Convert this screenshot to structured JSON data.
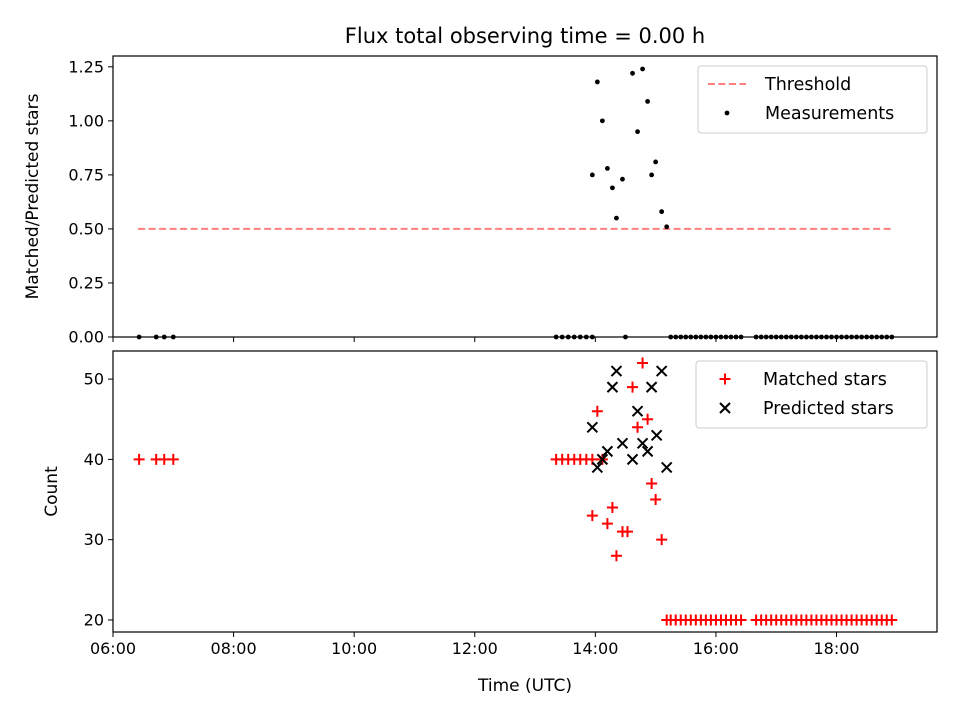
{
  "figure": {
    "title": "Flux total observing time = 0.00 h",
    "xlabel": "Time (UTC)"
  },
  "chart_data": [
    {
      "type": "scatter",
      "ylabel": "Matched/Predicted stars",
      "xlim": [
        "06:00",
        "19:40"
      ],
      "ylim": [
        0,
        1.3
      ],
      "xticks": [
        "06:00",
        "08:00",
        "10:00",
        "12:00",
        "14:00",
        "16:00",
        "18:00"
      ],
      "yticks": [
        "0.00",
        "0.25",
        "0.50",
        "0.75",
        "1.00",
        "1.25"
      ],
      "grid": false,
      "legend_position": "top-right",
      "series": [
        {
          "name": "Threshold",
          "kind": "line",
          "style": "dashed",
          "color": "#ff7f7f",
          "x": [
            "06:25",
            "18:57"
          ],
          "y": [
            0.5,
            0.5
          ]
        },
        {
          "name": "Measurements",
          "kind": "scatter",
          "marker": "dot",
          "color": "#000000",
          "x": [
            "06:26",
            "06:43",
            "06:51",
            "07:00",
            "13:21",
            "13:27",
            "13:33",
            "13:39",
            "13:45",
            "13:51",
            "13:57",
            "13:57",
            "14:02",
            "14:07",
            "14:12",
            "14:17",
            "14:21",
            "14:27",
            "14:30",
            "14:37",
            "14:42",
            "14:47",
            "14:52",
            "14:56",
            "15:00",
            "15:06",
            "15:11",
            "15:15",
            "15:20",
            "15:25",
            "15:30",
            "15:35",
            "15:40",
            "15:45",
            "15:50",
            "15:55",
            "16:00",
            "16:05",
            "16:10",
            "16:15",
            "16:20",
            "16:25",
            "16:40",
            "16:45",
            "16:50",
            "16:55",
            "17:00",
            "17:05",
            "17:10",
            "17:15",
            "17:20",
            "17:25",
            "17:30",
            "17:35",
            "17:40",
            "17:45",
            "17:50",
            "17:55",
            "18:00",
            "18:05",
            "18:10",
            "18:15",
            "18:20",
            "18:25",
            "18:30",
            "18:35",
            "18:40",
            "18:45",
            "18:50",
            "18:55"
          ],
          "y": [
            0,
            0,
            0,
            0,
            0,
            0,
            0,
            0,
            0,
            0,
            0,
            0.75,
            1.18,
            1.0,
            0.78,
            0.69,
            0.55,
            0.73,
            0,
            1.22,
            0.95,
            1.24,
            1.09,
            0.75,
            0.81,
            0.58,
            0.51,
            0,
            0,
            0,
            0,
            0,
            0,
            0,
            0,
            0,
            0,
            0,
            0,
            0,
            0,
            0,
            0,
            0,
            0,
            0,
            0,
            0,
            0,
            0,
            0,
            0,
            0,
            0,
            0,
            0,
            0,
            0,
            0,
            0,
            0,
            0,
            0,
            0,
            0,
            0,
            0,
            0,
            0,
            0
          ]
        }
      ]
    },
    {
      "type": "scatter",
      "ylabel": "Count",
      "xlim": [
        "06:00",
        "19:40"
      ],
      "ylim": [
        18.5,
        53.5
      ],
      "xticks": [
        "06:00",
        "08:00",
        "10:00",
        "12:00",
        "14:00",
        "16:00",
        "18:00"
      ],
      "yticks": [
        "20",
        "30",
        "40",
        "50"
      ],
      "grid": false,
      "legend_position": "top-right",
      "series": [
        {
          "name": "Matched stars",
          "kind": "scatter",
          "marker": "plus",
          "color": "#ff0000",
          "x": [
            "06:26",
            "06:43",
            "06:51",
            "07:00",
            "13:21",
            "13:27",
            "13:33",
            "13:39",
            "13:45",
            "13:51",
            "13:57",
            "13:57",
            "14:02",
            "14:07",
            "14:12",
            "14:17",
            "14:21",
            "14:27",
            "14:32",
            "14:37",
            "14:42",
            "14:47",
            "14:52",
            "14:56",
            "15:00",
            "15:06",
            "15:11",
            "15:15",
            "15:20",
            "15:25",
            "15:30",
            "15:35",
            "15:40",
            "15:45",
            "15:50",
            "15:55",
            "16:00",
            "16:05",
            "16:10",
            "16:15",
            "16:20",
            "16:25",
            "16:40",
            "16:45",
            "16:50",
            "16:55",
            "17:00",
            "17:05",
            "17:10",
            "17:15",
            "17:20",
            "17:25",
            "17:30",
            "17:35",
            "17:40",
            "17:45",
            "17:50",
            "17:55",
            "18:00",
            "18:05",
            "18:10",
            "18:15",
            "18:20",
            "18:25",
            "18:30",
            "18:35",
            "18:40",
            "18:45",
            "18:50",
            "18:55"
          ],
          "y": [
            40,
            40,
            40,
            40,
            40,
            40,
            40,
            40,
            40,
            40,
            40,
            33,
            46,
            40,
            32,
            34,
            28,
            31,
            31,
            49,
            44,
            52,
            45,
            37,
            35,
            30,
            20,
            20,
            20,
            20,
            20,
            20,
            20,
            20,
            20,
            20,
            20,
            20,
            20,
            20,
            20,
            20,
            20,
            20,
            20,
            20,
            20,
            20,
            20,
            20,
            20,
            20,
            20,
            20,
            20,
            20,
            20,
            20,
            20,
            20,
            20,
            20,
            20,
            20,
            20,
            20,
            20,
            20,
            20,
            20
          ]
        },
        {
          "name": "Predicted stars",
          "kind": "scatter",
          "marker": "x",
          "color": "#000000",
          "x": [
            "13:57",
            "14:02",
            "14:07",
            "14:12",
            "14:17",
            "14:21",
            "14:27",
            "14:37",
            "14:42",
            "14:47",
            "14:52",
            "14:56",
            "15:01",
            "15:06",
            "15:11"
          ],
          "y": [
            44,
            39,
            40,
            41,
            49,
            51,
            42,
            40,
            46,
            42,
            41,
            49,
            43,
            51,
            39
          ]
        }
      ]
    }
  ]
}
